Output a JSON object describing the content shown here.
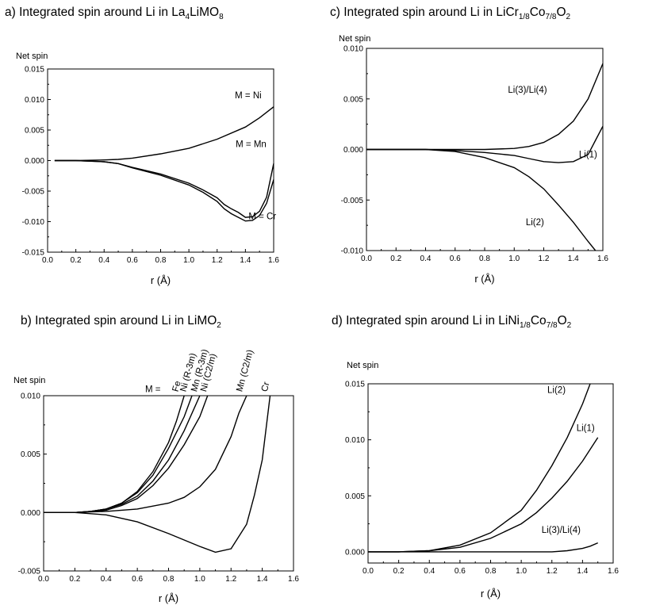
{
  "figure": {
    "panels": [
      {
        "id": "a",
        "title": {
          "pre": "a) Integrated spin around Li in La",
          "parts": [
            [
              "4",
              "sub"
            ],
            [
              "LiMO",
              ""
            ],
            [
              "8",
              "sub"
            ]
          ]
        },
        "ylabel": "Net spin",
        "xlabel": "r (Å)"
      },
      {
        "id": "c",
        "title": {
          "pre": "c) Integrated spin around Li in LiCr",
          "parts": [
            [
              "1/8",
              "sub"
            ],
            [
              "Co",
              ""
            ],
            [
              "7/8",
              "sub"
            ],
            [
              "O",
              ""
            ],
            [
              "2",
              "sub"
            ]
          ]
        },
        "ylabel": "Net spin",
        "xlabel": "r (Å)"
      },
      {
        "id": "b",
        "title": {
          "pre": "b) Integrated spin around Li in LiMO",
          "parts": [
            [
              "2",
              "sub"
            ]
          ]
        },
        "ylabel": "Net spin",
        "xlabel": "r (Å)"
      },
      {
        "id": "d",
        "title": {
          "pre": "d) Integrated spin around Li in LiNi",
          "parts": [
            [
              "1/8",
              "sub"
            ],
            [
              "Co",
              ""
            ],
            [
              "7/8",
              "sub"
            ],
            [
              "O",
              ""
            ],
            [
              "2",
              "sub"
            ]
          ]
        },
        "ylabel": "Net spin",
        "xlabel": "r (Å)"
      }
    ]
  },
  "chart_data": [
    {
      "panel": "a",
      "type": "line",
      "xlabel": "r (Å)",
      "ylabel": "Net spin",
      "xlim": [
        0.0,
        1.6
      ],
      "ylim": [
        -0.015,
        0.015
      ],
      "xticks": [
        "0.0",
        "0.2",
        "0.4",
        "0.6",
        "0.8",
        "1.0",
        "1.2",
        "1.4",
        "1.6"
      ],
      "yticks": [
        "-0.015",
        "-0.010",
        "-0.005",
        "0.000",
        "0.005",
        "0.010",
        "0.015"
      ],
      "series": [
        {
          "name": "M = Ni",
          "x": [
            0.05,
            0.2,
            0.4,
            0.5,
            0.6,
            0.8,
            1.0,
            1.2,
            1.4,
            1.5,
            1.6
          ],
          "y": [
            0,
            0,
            0.0001,
            0.0002,
            0.0004,
            0.0011,
            0.002,
            0.0035,
            0.0055,
            0.007,
            0.0088
          ]
        },
        {
          "name": "M = Mn",
          "x": [
            0.05,
            0.2,
            0.4,
            0.5,
            0.6,
            0.8,
            1.0,
            1.1,
            1.2,
            1.25,
            1.3,
            1.35,
            1.4,
            1.45,
            1.5,
            1.55,
            1.6
          ],
          "y": [
            0,
            0,
            -0.0002,
            -0.0005,
            -0.0011,
            -0.0022,
            -0.0037,
            -0.0048,
            -0.0061,
            -0.0072,
            -0.0079,
            -0.0085,
            -0.0093,
            -0.0092,
            -0.0083,
            -0.006,
            -0.0005
          ]
        },
        {
          "name": "M = Cr",
          "x": [
            0.05,
            0.2,
            0.4,
            0.5,
            0.6,
            0.8,
            1.0,
            1.1,
            1.2,
            1.25,
            1.3,
            1.35,
            1.4,
            1.45,
            1.5,
            1.55,
            1.6
          ],
          "y": [
            0,
            0,
            -0.0002,
            -0.0005,
            -0.0012,
            -0.0024,
            -0.004,
            -0.0052,
            -0.0067,
            -0.0079,
            -0.0087,
            -0.0093,
            -0.0099,
            -0.0098,
            -0.009,
            -0.007,
            -0.0031
          ]
        }
      ],
      "annotations": [
        {
          "text": "M = Ni",
          "x": 1.42,
          "y": 0.0102
        },
        {
          "text": "M = Mn",
          "x": 1.44,
          "y": 0.0022
        },
        {
          "text": "M = Cr",
          "x": 1.52,
          "y": -0.0096
        }
      ]
    },
    {
      "panel": "c",
      "type": "line",
      "xlabel": "r (Å)",
      "ylabel": "Net spin",
      "xlim": [
        0.0,
        1.6
      ],
      "ylim": [
        -0.01,
        0.01
      ],
      "xticks": [
        "0.0",
        "0.2",
        "0.4",
        "0.6",
        "0.8",
        "1.0",
        "1.2",
        "1.4",
        "1.6"
      ],
      "yticks": [
        "-0.010",
        "-0.005",
        "0.000",
        "0.005",
        "0.010"
      ],
      "series": [
        {
          "name": "Li(3)/Li(4)",
          "x": [
            0.0,
            0.2,
            0.4,
            0.6,
            0.8,
            1.0,
            1.1,
            1.2,
            1.3,
            1.4,
            1.5,
            1.6
          ],
          "y": [
            0,
            0,
            0,
            0,
            0,
            0.0001,
            0.0003,
            0.0007,
            0.0015,
            0.0028,
            0.005,
            0.0085
          ]
        },
        {
          "name": "Li(1)",
          "x": [
            0.0,
            0.2,
            0.4,
            0.6,
            0.8,
            1.0,
            1.1,
            1.2,
            1.3,
            1.4,
            1.5,
            1.55,
            1.6
          ],
          "y": [
            0,
            0,
            0,
            -0.0001,
            -0.0003,
            -0.0006,
            -0.0009,
            -0.0012,
            -0.0013,
            -0.0012,
            -0.0005,
            0.0009,
            0.0023
          ]
        },
        {
          "name": "Li(2)",
          "x": [
            0.0,
            0.2,
            0.4,
            0.6,
            0.8,
            1.0,
            1.1,
            1.2,
            1.3,
            1.4,
            1.5,
            1.55
          ],
          "y": [
            0,
            0,
            0,
            -0.0002,
            -0.0008,
            -0.0018,
            -0.0027,
            -0.0039,
            -0.0055,
            -0.0072,
            -0.0091,
            -0.01
          ]
        }
      ],
      "annotations": [
        {
          "text": "Li(3)/Li(4)",
          "x": 1.09,
          "y": 0.0056
        },
        {
          "text": "Li(1)",
          "x": 1.5,
          "y": -0.0008
        },
        {
          "text": "Li(2)",
          "x": 1.14,
          "y": -0.0075
        }
      ]
    },
    {
      "panel": "b",
      "type": "line",
      "xlabel": "r (Å)",
      "ylabel": "Net spin",
      "xlim": [
        0.0,
        1.6
      ],
      "ylim": [
        -0.005,
        0.01
      ],
      "xticks": [
        "0.0",
        "0.2",
        "0.4",
        "0.6",
        "0.8",
        "1.0",
        "1.2",
        "1.4",
        "1.6"
      ],
      "yticks": [
        "-0.005",
        "0.000",
        "0.005",
        "0.010"
      ],
      "series": [
        {
          "name": "Fe",
          "x": [
            0.0,
            0.2,
            0.3,
            0.4,
            0.5,
            0.6,
            0.7,
            0.8,
            0.85,
            0.9
          ],
          "y": [
            0,
            0,
            0.0001,
            0.0003,
            0.0008,
            0.0018,
            0.0035,
            0.006,
            0.0078,
            0.01
          ]
        },
        {
          "name": "Ni (R-3m)",
          "x": [
            0.0,
            0.2,
            0.3,
            0.4,
            0.5,
            0.6,
            0.7,
            0.8,
            0.9,
            0.95
          ],
          "y": [
            0,
            0,
            0.0001,
            0.0003,
            0.0008,
            0.0017,
            0.0032,
            0.0055,
            0.0082,
            0.01
          ]
        },
        {
          "name": "Mn (R-3m)",
          "x": [
            0.0,
            0.2,
            0.3,
            0.4,
            0.5,
            0.6,
            0.7,
            0.8,
            0.9,
            1.0
          ],
          "y": [
            0,
            0,
            0.0001,
            0.0003,
            0.0007,
            0.0014,
            0.0027,
            0.0045,
            0.007,
            0.01
          ]
        },
        {
          "name": "Ni (C2/m)",
          "x": [
            0.0,
            0.2,
            0.3,
            0.4,
            0.5,
            0.6,
            0.7,
            0.8,
            0.9,
            1.0,
            1.05
          ],
          "y": [
            0,
            0,
            0.0001,
            0.0002,
            0.0006,
            0.0012,
            0.0023,
            0.0038,
            0.0058,
            0.0082,
            0.01
          ]
        },
        {
          "name": "Mn (C2/m)",
          "x": [
            0.0,
            0.2,
            0.4,
            0.6,
            0.8,
            0.9,
            1.0,
            1.1,
            1.2,
            1.25,
            1.3
          ],
          "y": [
            0,
            0,
            0.0001,
            0.0003,
            0.0008,
            0.0013,
            0.0022,
            0.0037,
            0.0065,
            0.0085,
            0.01
          ]
        },
        {
          "name": "Cr",
          "x": [
            0.0,
            0.2,
            0.4,
            0.6,
            0.8,
            1.0,
            1.1,
            1.2,
            1.3,
            1.35,
            1.4,
            1.45
          ],
          "y": [
            0,
            0,
            -0.0002,
            -0.0008,
            -0.0018,
            -0.0029,
            -0.0034,
            -0.0031,
            -0.001,
            0.0015,
            0.0045,
            0.01
          ]
        }
      ],
      "annotations": [
        {
          "text": "M =",
          "x": 0.65,
          "y": 0.0103,
          "rot": 0
        },
        {
          "text": "Fe",
          "x": 0.86,
          "y": 0.0103,
          "rot": -75
        },
        {
          "text": "Ni (R-3m)",
          "x": 0.91,
          "y": 0.0103,
          "rot": -75
        },
        {
          "text": "Mn (R-3m)",
          "x": 0.98,
          "y": 0.0103,
          "rot": -75
        },
        {
          "text": "Ni (C2/m)",
          "x": 1.04,
          "y": 0.0103,
          "rot": -75
        },
        {
          "text": "Mn (C2/m)",
          "x": 1.27,
          "y": 0.0103,
          "rot": -75
        },
        {
          "text": "Cr",
          "x": 1.43,
          "y": 0.0103,
          "rot": -75
        }
      ]
    },
    {
      "panel": "d",
      "type": "line",
      "xlabel": "r (Å)",
      "ylabel": "Net spin",
      "xlim": [
        0.0,
        1.6
      ],
      "ylim": [
        -0.001,
        0.015
      ],
      "xticks": [
        "0.0",
        "0.2",
        "0.4",
        "0.6",
        "0.8",
        "1.0",
        "1.2",
        "1.4",
        "1.6"
      ],
      "yticks": [
        "0.000",
        "0.005",
        "0.010",
        "0.015"
      ],
      "series": [
        {
          "name": "Li(2)",
          "x": [
            0.0,
            0.2,
            0.4,
            0.6,
            0.8,
            1.0,
            1.1,
            1.2,
            1.3,
            1.4,
            1.45
          ],
          "y": [
            0,
            0,
            0.0001,
            0.0006,
            0.0017,
            0.0037,
            0.0055,
            0.0077,
            0.0102,
            0.0132,
            0.015
          ]
        },
        {
          "name": "Li(1)",
          "x": [
            0.0,
            0.2,
            0.4,
            0.6,
            0.8,
            1.0,
            1.1,
            1.2,
            1.3,
            1.4,
            1.5
          ],
          "y": [
            0,
            0,
            0.0001,
            0.0004,
            0.0012,
            0.0025,
            0.0035,
            0.0048,
            0.0063,
            0.0081,
            0.0102
          ]
        },
        {
          "name": "Li(3)/Li(4)",
          "x": [
            0.0,
            0.2,
            0.4,
            0.6,
            0.8,
            1.0,
            1.2,
            1.3,
            1.4,
            1.45,
            1.5
          ],
          "y": [
            0,
            0,
            0,
            0,
            0,
            0,
            0,
            0.0001,
            0.0003,
            0.0005,
            0.0008
          ]
        }
      ],
      "annotations": [
        {
          "text": "Li(2)",
          "x": 1.23,
          "y": 0.0142
        },
        {
          "text": "Li(1)",
          "x": 1.42,
          "y": 0.0108
        },
        {
          "text": "Li(3)/Li(4)",
          "x": 1.26,
          "y": 0.0017
        }
      ]
    }
  ]
}
